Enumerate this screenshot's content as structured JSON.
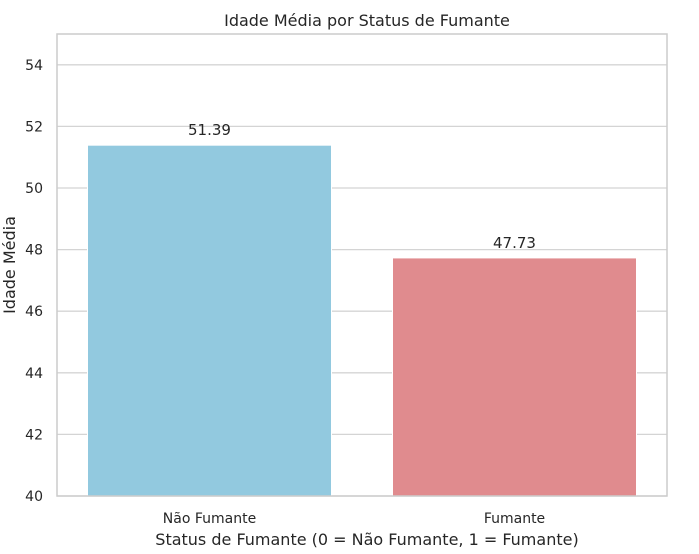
{
  "chart_data": {
    "type": "bar",
    "title": "Idade Média por Status de Fumante",
    "xlabel": "Status de Fumante (0 = Não Fumante, 1 = Fumante)",
    "ylabel": "Idade Média",
    "categories": [
      "Não Fumante",
      "Fumante"
    ],
    "values": [
      51.39,
      47.73
    ],
    "data_labels": [
      "51.39",
      "47.73"
    ],
    "colors": [
      "#92C9DF",
      "#E08B8E"
    ],
    "ylim": [
      40,
      55
    ],
    "yticks": [
      40,
      42,
      44,
      46,
      48,
      50,
      52,
      54
    ],
    "grid": true,
    "grid_axis": "y",
    "grid_color": "#d4d4d4",
    "spine_color": "#cccccc"
  }
}
